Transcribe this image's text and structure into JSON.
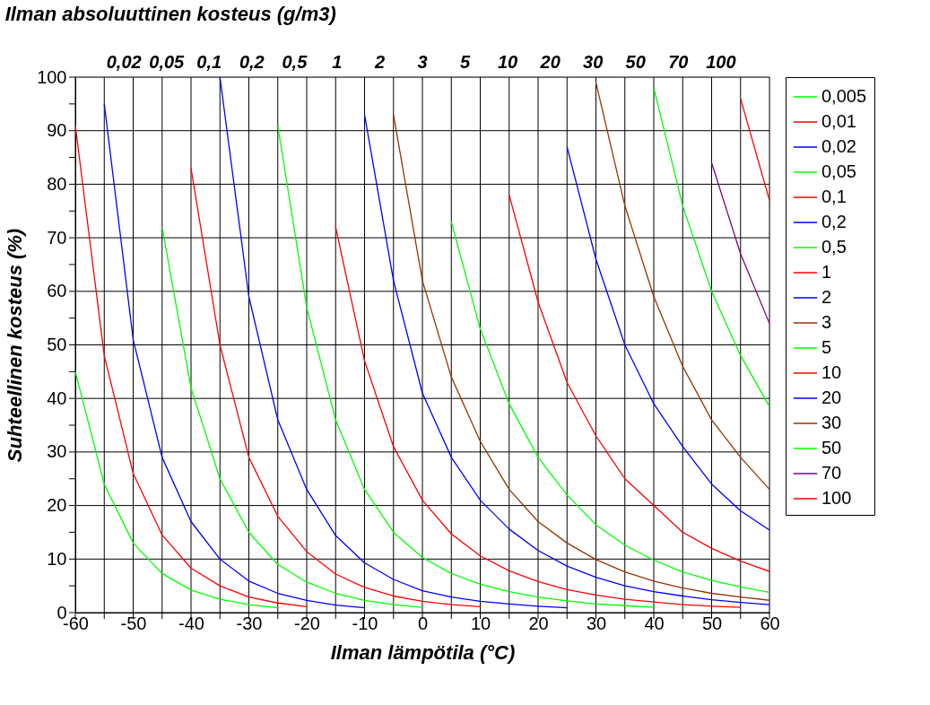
{
  "chart_data": {
    "type": "line",
    "title": "Ilman absoluuttinen kosteus (g/m3)",
    "xlabel": "Ilman lämpötila (°C)",
    "ylabel": "Suhteellinen kosteus (%)",
    "x": [
      -60,
      -55,
      -50,
      -45,
      -40,
      -35,
      -30,
      -25,
      -20,
      -15,
      -10,
      -5,
      0,
      5,
      10,
      15,
      20,
      25,
      30,
      35,
      40,
      45,
      50,
      55,
      60
    ],
    "xlim": [
      -60,
      60
    ],
    "ylim": [
      0,
      100
    ],
    "xticks": [
      -60,
      {
        "value": -55,
        "label": null
      },
      -50,
      {
        "value": -45,
        "label": null
      },
      -40,
      {
        "value": -35,
        "label": null
      },
      -30,
      {
        "value": -25,
        "label": null
      },
      -20,
      {
        "value": -15,
        "label": null
      },
      -10,
      {
        "value": -5,
        "label": null
      },
      0,
      {
        "value": 5,
        "label": null
      },
      10,
      {
        "value": 15,
        "label": null
      },
      20,
      {
        "value": 25,
        "label": null
      },
      30,
      {
        "value": 35,
        "label": null
      },
      40,
      {
        "value": 45,
        "label": null
      },
      50,
      {
        "value": 55,
        "label": null
      },
      60
    ],
    "yticks": [
      0,
      {
        "value": 5,
        "label": null
      },
      10,
      {
        "value": 15,
        "label": null
      },
      20,
      {
        "value": 25,
        "label": null
      },
      30,
      {
        "value": 35,
        "label": null
      },
      40,
      {
        "value": 45,
        "label": null
      },
      50,
      {
        "value": 55,
        "label": null
      },
      60,
      {
        "value": 65,
        "label": null
      },
      70,
      {
        "value": 75,
        "label": null
      },
      80,
      {
        "value": 85,
        "label": null
      },
      90,
      {
        "value": 95,
        "label": null
      },
      100
    ],
    "annotations": [
      "0,02",
      "0,05",
      "0,1",
      "0,2",
      "0,5",
      "1",
      "2",
      "3",
      "5",
      "10",
      "20",
      "30",
      "50",
      "70",
      "100"
    ],
    "grid": true,
    "legend": "right",
    "marker": "none",
    "line_style": "solid",
    "series": [
      {
        "name": "0,005",
        "color": "#00ff00",
        "values": [
          45,
          24,
          13,
          7.3,
          4.2,
          2.5,
          1.5,
          0.9,
          null,
          null,
          null,
          null,
          null,
          null,
          null,
          null,
          null,
          null,
          null,
          null,
          null,
          null,
          null,
          null,
          null
        ]
      },
      {
        "name": "0,01",
        "color": "#ff0000",
        "values": [
          91,
          48,
          26,
          14.5,
          8.3,
          5,
          2.9,
          1.8,
          1.1,
          null,
          null,
          null,
          null,
          null,
          null,
          null,
          null,
          null,
          null,
          null,
          null,
          null,
          null,
          null,
          null
        ]
      },
      {
        "name": "0,02",
        "color": "#0000ff",
        "values": [
          null,
          95,
          51,
          29,
          17,
          10,
          5.9,
          3.6,
          2.3,
          1.4,
          0.9,
          null,
          null,
          null,
          null,
          null,
          null,
          null,
          null,
          null,
          null,
          null,
          null,
          null,
          null
        ]
      },
      {
        "name": "0,05",
        "color": "#00ff00",
        "values": [
          null,
          null,
          null,
          72,
          42,
          25,
          15,
          9,
          5.7,
          3.6,
          2.3,
          1.5,
          1.0,
          null,
          null,
          null,
          null,
          null,
          null,
          null,
          null,
          null,
          null,
          null,
          null
        ]
      },
      {
        "name": "0,1",
        "color": "#ff0000",
        "values": [
          null,
          null,
          null,
          null,
          83,
          50,
          29,
          18,
          11.4,
          7.2,
          4.7,
          3.1,
          2.1,
          1.5,
          1.1,
          null,
          null,
          null,
          null,
          null,
          null,
          null,
          null,
          null,
          null
        ]
      },
      {
        "name": "0,2",
        "color": "#0000ff",
        "values": [
          null,
          null,
          null,
          null,
          null,
          100,
          59,
          36,
          23,
          14.4,
          9.3,
          6.2,
          4.1,
          2.9,
          2.1,
          1.6,
          1.2,
          0.9,
          null,
          null,
          null,
          null,
          null,
          null,
          null
        ]
      },
      {
        "name": "0,5",
        "color": "#00ff00",
        "values": [
          null,
          null,
          null,
          null,
          null,
          null,
          null,
          91,
          57,
          36,
          23,
          15,
          10.3,
          7.3,
          5.3,
          3.9,
          2.9,
          2.2,
          1.6,
          1.3,
          1.0,
          null,
          null,
          null,
          null
        ]
      },
      {
        "name": "1",
        "color": "#ff0000",
        "values": [
          null,
          null,
          null,
          null,
          null,
          null,
          null,
          null,
          null,
          72,
          47,
          31,
          21,
          14.7,
          10.6,
          7.8,
          5.8,
          4.3,
          3.3,
          2.5,
          2.0,
          1.5,
          1.2,
          1.0,
          null
        ]
      },
      {
        "name": "2",
        "color": "#0000ff",
        "values": [
          null,
          null,
          null,
          null,
          null,
          null,
          null,
          null,
          null,
          null,
          93,
          62,
          41,
          29,
          21,
          15.6,
          11.6,
          8.7,
          6.6,
          5,
          3.9,
          3.1,
          2.4,
          1.9,
          1.5
        ]
      },
      {
        "name": "3",
        "color": "#993300",
        "values": [
          null,
          null,
          null,
          null,
          null,
          null,
          null,
          null,
          null,
          null,
          null,
          93,
          62,
          44,
          32,
          23,
          17,
          13,
          9.9,
          7.6,
          5.9,
          4.6,
          3.6,
          2.9,
          2.3
        ]
      },
      {
        "name": "5",
        "color": "#00ff00",
        "values": [
          null,
          null,
          null,
          null,
          null,
          null,
          null,
          null,
          null,
          null,
          null,
          null,
          null,
          73,
          53,
          39,
          29,
          22,
          16.4,
          12.6,
          9.8,
          7.6,
          6,
          4.8,
          3.8
        ]
      },
      {
        "name": "10",
        "color": "#ff0000",
        "values": [
          null,
          null,
          null,
          null,
          null,
          null,
          null,
          null,
          null,
          null,
          null,
          null,
          null,
          null,
          null,
          78,
          58,
          43,
          33,
          25,
          20,
          15,
          12,
          9.6,
          7.7
        ]
      },
      {
        "name": "20",
        "color": "#0000ff",
        "values": [
          null,
          null,
          null,
          null,
          null,
          null,
          null,
          null,
          null,
          null,
          null,
          null,
          null,
          null,
          null,
          null,
          null,
          87,
          66,
          50,
          39,
          31,
          24,
          19,
          15.4
        ]
      },
      {
        "name": "30",
        "color": "#993300",
        "values": [
          null,
          null,
          null,
          null,
          null,
          null,
          null,
          null,
          null,
          null,
          null,
          null,
          null,
          null,
          null,
          null,
          null,
          null,
          99,
          76,
          59,
          46,
          36,
          29,
          23
        ]
      },
      {
        "name": "50",
        "color": "#00ff00",
        "values": [
          null,
          null,
          null,
          null,
          null,
          null,
          null,
          null,
          null,
          null,
          null,
          null,
          null,
          null,
          null,
          null,
          null,
          null,
          null,
          null,
          98,
          76,
          60,
          48,
          38.5
        ]
      },
      {
        "name": "70",
        "color": "#800080",
        "values": [
          null,
          null,
          null,
          null,
          null,
          null,
          null,
          null,
          null,
          null,
          null,
          null,
          null,
          null,
          null,
          null,
          null,
          null,
          null,
          null,
          null,
          null,
          84,
          67,
          54
        ]
      },
      {
        "name": "100",
        "color": "#ff0000",
        "values": [
          null,
          null,
          null,
          null,
          null,
          null,
          null,
          null,
          null,
          null,
          null,
          null,
          null,
          null,
          null,
          null,
          null,
          null,
          null,
          null,
          null,
          null,
          null,
          96,
          77
        ]
      }
    ]
  }
}
